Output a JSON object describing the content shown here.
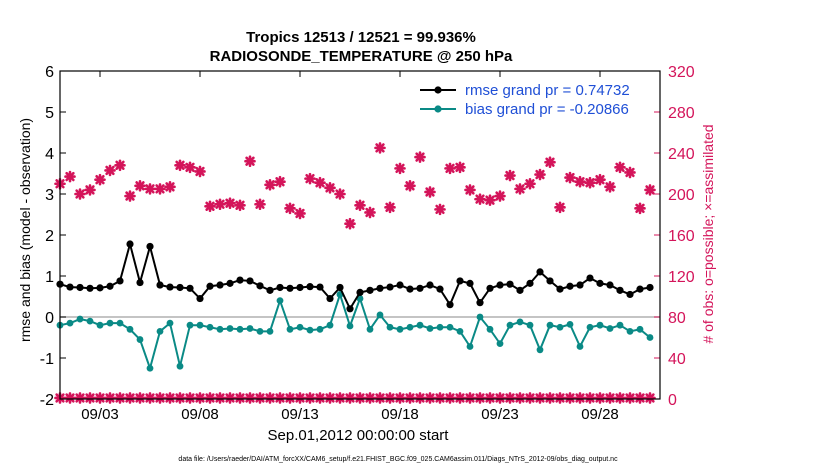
{
  "chart_data": {
    "type": "line",
    "title_line1": "Tropics 12513 / 12521 = 99.936%",
    "title_line2": "RADIOSONDE_TEMPERATURE @ 250 hPa",
    "xlabel": "Sep.01,2012 00:00:00 start",
    "ylabel_left": "rmse and bias (model - observation)",
    "ylabel_right": "# of obs: o=possible; ×=assimilated",
    "footer": "data file: /Users/raeder/DAI/ATM_forcXX/CAM6_setup/f.e21.FHIST_BGC.f09_025.CAM6assim.011/Diags_NTrS_2012-09/obs_diag_output.nc",
    "x_range": [
      1.0,
      31.0
    ],
    "x_ticks": [
      3,
      8,
      13,
      18,
      23,
      28
    ],
    "x_tick_labels": [
      "09/03",
      "09/08",
      "09/13",
      "09/18",
      "09/23",
      "09/28"
    ],
    "ylim_left": [
      -2,
      6
    ],
    "y_ticks_left": [
      -2,
      -1,
      0,
      1,
      2,
      3,
      4,
      5,
      6
    ],
    "ylim_right": [
      0,
      320
    ],
    "y_ticks_right": [
      0,
      40,
      80,
      120,
      160,
      200,
      240,
      280,
      320
    ],
    "legend": [
      {
        "label": "rmse grand pr = 0.74732",
        "color": "#000000"
      },
      {
        "label": "bias grand pr = -0.20866",
        "color": "#008080"
      }
    ],
    "colors": {
      "rmse": "#000000",
      "bias": "#0a8a86",
      "obs": "#d4145a",
      "legend_text": "#1f4fd6",
      "zero_line": "#b0b0b0"
    },
    "x": [
      1.0,
      1.5,
      2.0,
      2.5,
      3.0,
      3.5,
      4.0,
      4.5,
      5.0,
      5.5,
      6.0,
      6.5,
      7.0,
      7.5,
      8.0,
      8.5,
      9.0,
      9.5,
      10.0,
      10.5,
      11.0,
      11.5,
      12.0,
      12.5,
      13.0,
      13.5,
      14.0,
      14.5,
      15.0,
      15.5,
      16.0,
      16.5,
      17.0,
      17.5,
      18.0,
      18.5,
      19.0,
      19.5,
      20.0,
      20.5,
      21.0,
      21.5,
      22.0,
      22.5,
      23.0,
      23.5,
      24.0,
      24.5,
      25.0,
      25.5,
      26.0,
      26.5,
      27.0,
      27.5,
      28.0,
      28.5,
      29.0,
      29.5,
      30.0,
      30.5
    ],
    "series": [
      {
        "name": "rmse",
        "values": [
          0.8,
          0.73,
          0.72,
          0.7,
          0.71,
          0.75,
          0.88,
          1.78,
          0.84,
          1.72,
          0.78,
          0.73,
          0.72,
          0.7,
          0.45,
          0.75,
          0.78,
          0.82,
          0.9,
          0.88,
          0.76,
          0.65,
          0.72,
          0.7,
          0.72,
          0.74,
          0.73,
          0.45,
          0.72,
          0.2,
          0.6,
          0.65,
          0.7,
          0.73,
          0.78,
          0.68,
          0.7,
          0.78,
          0.68,
          0.3,
          0.88,
          0.82,
          0.35,
          0.7,
          0.78,
          0.8,
          0.65,
          0.82,
          1.1,
          0.88,
          0.68,
          0.75,
          0.78,
          0.95,
          0.82,
          0.78,
          0.65,
          0.55,
          0.68,
          0.72
        ]
      },
      {
        "name": "bias",
        "values": [
          -0.2,
          -0.15,
          -0.05,
          -0.1,
          -0.2,
          -0.15,
          -0.15,
          -0.3,
          -0.55,
          -1.25,
          -0.35,
          -0.15,
          -1.2,
          -0.2,
          -0.2,
          -0.25,
          -0.3,
          -0.28,
          -0.3,
          -0.28,
          -0.35,
          -0.35,
          0.4,
          -0.3,
          -0.25,
          -0.32,
          -0.3,
          -0.2,
          0.55,
          -0.22,
          0.45,
          -0.3,
          0.05,
          -0.25,
          -0.3,
          -0.25,
          -0.2,
          -0.28,
          -0.25,
          -0.25,
          -0.35,
          -0.72,
          0.0,
          -0.3,
          -0.65,
          -0.2,
          -0.12,
          -0.2,
          -0.8,
          -0.2,
          -0.25,
          -0.18,
          -0.72,
          -0.25,
          -0.2,
          -0.28,
          -0.2,
          -0.35,
          -0.3,
          -0.5
        ]
      },
      {
        "name": "obs_possible",
        "values": [
          210,
          217,
          200,
          204,
          214,
          223,
          228,
          198,
          208,
          205,
          205,
          207,
          228,
          226,
          222,
          188,
          190,
          191,
          189,
          232,
          190,
          209,
          212,
          186,
          181,
          215,
          211,
          206,
          200,
          171,
          189,
          182,
          245,
          187,
          225,
          208,
          236,
          202,
          185,
          225,
          226,
          204,
          195,
          194,
          198,
          218,
          205,
          210,
          219,
          231,
          187,
          216,
          212,
          211,
          214,
          207,
          226,
          221,
          186,
          204
        ]
      },
      {
        "name": "obs_assimilated",
        "values": [
          1,
          1,
          1,
          1,
          1,
          1,
          1,
          1,
          1,
          1,
          1,
          1,
          1,
          1,
          1,
          1,
          1,
          1,
          1,
          1,
          1,
          1,
          1,
          1,
          1,
          1,
          1,
          1,
          1,
          1,
          1,
          1,
          1,
          1,
          1,
          1,
          1,
          1,
          1,
          1,
          1,
          1,
          1,
          1,
          1,
          1,
          1,
          1,
          1,
          1,
          1,
          1,
          1,
          1,
          1,
          1,
          1,
          1,
          1,
          1
        ]
      }
    ]
  }
}
